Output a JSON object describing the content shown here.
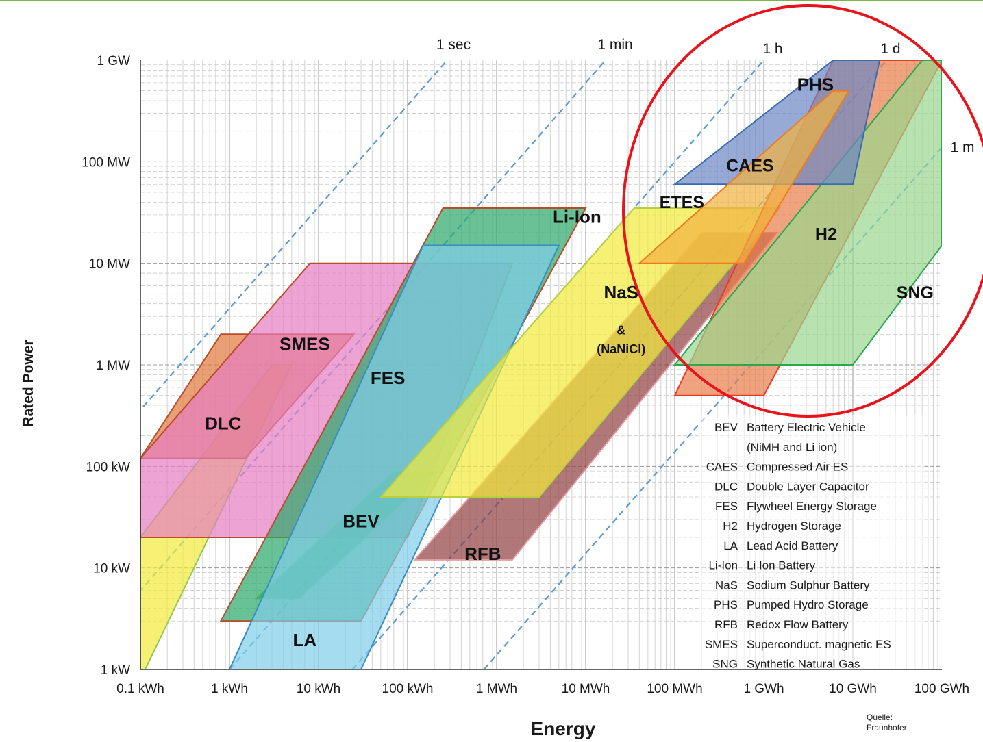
{
  "chart_data": {
    "type": "area",
    "title": "",
    "xlabel": "Energy",
    "ylabel": "Rated Power",
    "x_scale": "log",
    "y_scale": "log",
    "x_range_kWh": [
      0.1,
      100000000
    ],
    "y_range_kW": [
      1,
      1000000
    ],
    "grid": true,
    "x_ticks": [
      {
        "value": 0.1,
        "label": "0.1 kWh"
      },
      {
        "value": 1,
        "label": "1 kWh"
      },
      {
        "value": 10,
        "label": "10 kWh"
      },
      {
        "value": 100,
        "label": "100 kWh"
      },
      {
        "value": 1000,
        "label": "1 MWh"
      },
      {
        "value": 10000,
        "label": "10 MWh"
      },
      {
        "value": 100000,
        "label": "100 MWh"
      },
      {
        "value": 1000000,
        "label": "1 GWh"
      },
      {
        "value": 10000000,
        "label": "10 GWh"
      },
      {
        "value": 100000000,
        "label": "100 GWh"
      }
    ],
    "y_ticks": [
      {
        "value": 1,
        "label": "1 kW"
      },
      {
        "value": 10,
        "label": "10 kW"
      },
      {
        "value": 100,
        "label": "100 kW"
      },
      {
        "value": 1000,
        "label": "1 MW"
      },
      {
        "value": 10000,
        "label": "10 MW"
      },
      {
        "value": 100000,
        "label": "100 MW"
      },
      {
        "value": 1000000,
        "label": "1 GW"
      }
    ],
    "discharge_lines": [
      {
        "label": "1 sec",
        "hours": 0.000278
      },
      {
        "label": "1 min",
        "hours": 0.01667
      },
      {
        "label": "1 h",
        "hours": 1
      },
      {
        "label": "1 d",
        "hours": 24
      },
      {
        "label": "1 m",
        "hours": 720
      }
    ],
    "series": [
      {
        "name": "DLC",
        "color": "#f2ea3a",
        "stroke": "#90c850",
        "points": [
          [
            0.1,
            0.6
          ],
          [
            0.1,
            20
          ],
          [
            3,
            1000
          ],
          [
            5,
            1000
          ],
          [
            0.1,
            0.8
          ]
        ],
        "label_at": [
          0.85,
          230
        ]
      },
      {
        "name": "SMES",
        "color": "#e0783a",
        "stroke": "#b84b2a",
        "points": [
          [
            0.1,
            120
          ],
          [
            0.8,
            2000
          ],
          [
            25,
            2000
          ],
          [
            1.5,
            120
          ]
        ],
        "label_at": [
          7,
          1400
        ]
      },
      {
        "name": "FES",
        "color": "#e67ec2",
        "stroke": "#b84b2a",
        "points": [
          [
            0.1,
            20
          ],
          [
            0.1,
            120
          ],
          [
            8,
            10000
          ],
          [
            1500,
            10000
          ],
          [
            100,
            20
          ]
        ],
        "label_at": [
          60,
          650
        ]
      },
      {
        "name": "BEV",
        "color": "#1a9a3a",
        "stroke": "#8fd35a",
        "points": [
          [
            2,
            5
          ],
          [
            6,
            5
          ],
          [
            220,
            90
          ],
          [
            70,
            90
          ]
        ],
        "label_at": [
          30,
          25
        ]
      },
      {
        "name": "Li-Ion",
        "color": "#2aa86a",
        "stroke": "#b84b2a",
        "points": [
          [
            0.8,
            3
          ],
          [
            30,
            3
          ],
          [
            10000,
            35000
          ],
          [
            250,
            35000
          ]
        ],
        "label_at": [
          8000,
          25000
        ]
      },
      {
        "name": "LA",
        "color": "#7fcde8",
        "stroke": "#3a8dc0",
        "points": [
          [
            1,
            1
          ],
          [
            30,
            1
          ],
          [
            5000,
            15000
          ],
          [
            150,
            15000
          ]
        ],
        "label_at": [
          7,
          1.7
        ]
      },
      {
        "name": "RFB",
        "color": "#8e3f3f",
        "stroke": "#e39aa0",
        "points": [
          [
            120,
            12
          ],
          [
            1500,
            12
          ],
          [
            1400000,
            20000
          ],
          [
            200000,
            20000
          ]
        ],
        "label_at": [
          700,
          12
        ]
      },
      {
        "name": "NaS",
        "color": "#f2ea3a",
        "stroke": "#b8d040",
        "points": [
          [
            50,
            50
          ],
          [
            3000,
            50
          ],
          [
            1500000,
            35000
          ],
          [
            35000,
            35000
          ]
        ],
        "label_at": [
          25000,
          4500
        ]
      },
      {
        "name": "H2",
        "color": "#e87c47",
        "stroke": "#e83a2a",
        "points": [
          [
            100000,
            500
          ],
          [
            1000000,
            500
          ],
          [
            100000000,
            1000000
          ],
          [
            6000000,
            1000000
          ]
        ],
        "label_at": [
          5000000,
          17000
        ]
      },
      {
        "name": "SNG",
        "color": "#9ad58e",
        "stroke": "#2aa850",
        "points": [
          [
            100000,
            1000
          ],
          [
            10000000,
            1000
          ],
          [
            100000000,
            15000
          ],
          [
            100000000,
            1000000
          ],
          [
            60000000,
            1000000
          ]
        ],
        "label_at": [
          50000000,
          4500
        ]
      },
      {
        "name": "PHS",
        "color": "#6b86c4",
        "stroke": "#3a6ab0",
        "points": [
          [
            100000,
            60000
          ],
          [
            10000000,
            60000
          ],
          [
            20000000,
            1000000
          ],
          [
            6000000,
            1000000
          ]
        ],
        "label_at": [
          3800000,
          500000
        ]
      },
      {
        "name": "CAES",
        "color": "#f2b240",
        "stroke": "#f07a20",
        "points": [
          [
            40000,
            10000
          ],
          [
            600000,
            10000
          ],
          [
            9000000,
            500000
          ],
          [
            6000000,
            500000
          ]
        ],
        "label_at": [
          700000,
          80000
        ]
      },
      {
        "name": "ETES",
        "color": "#f2b240",
        "stroke": "#f07a20",
        "points": [],
        "label_at": [
          120000,
          35000
        ]
      }
    ],
    "extra_labels": [
      {
        "text": "&",
        "at": [
          25000,
          2000
        ]
      },
      {
        "text": "(NaNiCl)",
        "at": [
          25000,
          1300
        ]
      }
    ],
    "highlight": {
      "shape": "circle",
      "color": "#e8141c",
      "encloses": [
        "PHS",
        "CAES",
        "ETES",
        "H2",
        "SNG"
      ]
    },
    "legend": [
      {
        "abbr": "BEV",
        "name": "Battery  Electric Vehicle"
      },
      {
        "abbr": "",
        "name": "(NiMH and Li ion)"
      },
      {
        "abbr": "CAES",
        "name": "Compressed Air ES"
      },
      {
        "abbr": "DLC",
        "name": "Double Layer Capacitor"
      },
      {
        "abbr": "FES",
        "name": "Flywheel  Energy Storage"
      },
      {
        "abbr": "H2",
        "name": "Hydrogen Storage"
      },
      {
        "abbr": "LA",
        "name": "Lead Acid Battery"
      },
      {
        "abbr": "Li-Ion",
        "name": "Li Ion Battery"
      },
      {
        "abbr": "NaS",
        "name": "Sodium Sulphur Battery"
      },
      {
        "abbr": "PHS",
        "name": "Pumped Hydro Storage"
      },
      {
        "abbr": "RFB",
        "name": "Redox Flow  Battery"
      },
      {
        "abbr": "SMES",
        "name": "Superconduct. magnetic ES"
      },
      {
        "abbr": "SNG",
        "name": "Synthetic Natural Gas"
      }
    ],
    "source_lines": [
      "Quelle:",
      "Fraunhofer"
    ]
  }
}
